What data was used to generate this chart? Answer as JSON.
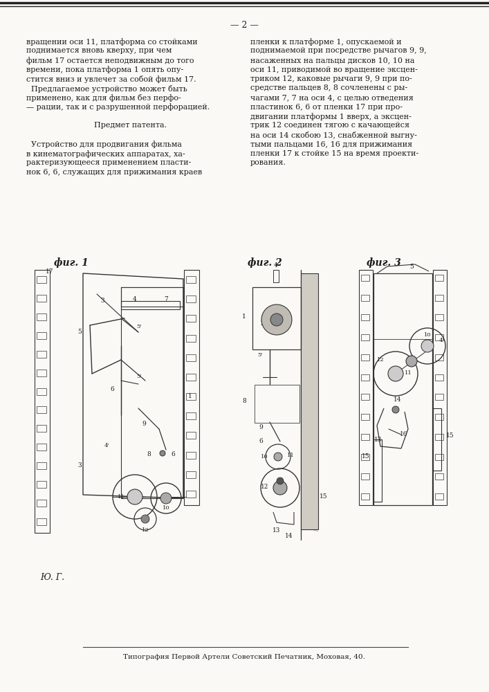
{
  "page_number": "— 2 —",
  "background_color": "#f5f3ee",
  "paper_color": "#faf9f6",
  "text_color": "#1c1c1c",
  "line_color": "#333333",
  "left_column_lines": [
    "вращении оси 11, платформа со стойками",
    "поднимается вновь кверху, при чем",
    "фильм 17 остается неподвижным до того",
    "времени, пока платформа 1 опять опу-",
    "стится вниз и увлечет за собой фильм 17.",
    "  Предлагаемое устройство может быть",
    "применено, как для фильм без перфо-",
    "— рации, так и с разрушенной перфорацией.",
    "",
    "Предмет патента.",
    "",
    "  Устройство для продвигания фильма",
    "в кинематографических аппаратах, ха-",
    "рактеризующееся применением пласти-",
    "нок 6, 6, служащих для прижимания краев"
  ],
  "right_column_lines": [
    "пленки к платформе 1, опускаемой и",
    "поднимаемой при посредстве рычагов 9, 9,",
    "насаженных на пальцы дисков 10, 10 на",
    "оси 11, приводимой во вращение эксцен-",
    "триком 12, каковые рычаги 9, 9 при по-",
    "средстве пальцев 8, 8 сочленены с ры-",
    "чагами 7, 7 на оси 4, с целью отведения",
    "пластинок 6, 6 от пленки 17 при про-",
    "двигании платформы 1 вверх, а эксцен-",
    "трик 12 соединен тягою с качающейся",
    "на оси 14 скобою 13, снабженной выгну-",
    "тыми пальцами 16, 16 для прижимания",
    "пленки 17 к стойке 15 на время проекти-",
    "рования."
  ],
  "fig_label_1": "фиг. 1",
  "fig_label_2": "фиг. 2",
  "fig_label_3": "фиг. 3",
  "bottom_text": "Ю. Г.",
  "footer_text": "Типография Первой Артели Советский Печатник, Моховая, 40."
}
